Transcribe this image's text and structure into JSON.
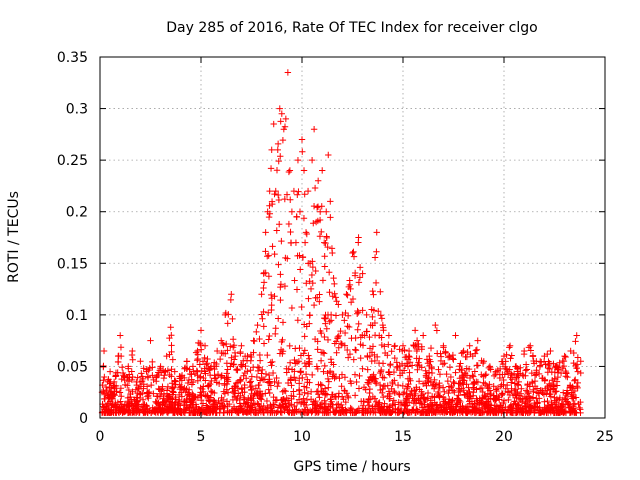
{
  "chart_data": {
    "type": "scatter",
    "title": "Day 285 of 2016, Rate Of TEC Index for receiver clgo",
    "xlabel": "GPS time / hours",
    "ylabel": "ROTI / TECUs",
    "xlim": [
      0,
      25
    ],
    "ylim": [
      0,
      0.35
    ],
    "x_ticks": [
      0,
      5,
      10,
      15,
      20,
      25
    ],
    "x_tick_labels": [
      "0",
      "5",
      "10",
      "15",
      "20",
      "25"
    ],
    "y_ticks": [
      0,
      0.05,
      0.1,
      0.15,
      0.2,
      0.25,
      0.3,
      0.35
    ],
    "y_tick_labels": [
      "0",
      "0.05",
      "0.1",
      "0.15",
      "0.2",
      "0.25",
      "0.3",
      "0.35"
    ],
    "grid": true,
    "marker": "+",
    "marker_color": "#ff0000",
    "envelope_description": "Dense red '+' markers; baseline ROTI 0.005-0.05 across 0-24 h with spikes to ~0.08-0.09; enhanced activity 8-12 h peaking near 0.3 and a max of ~0.335 at 9.3 h; secondary spikes to ~0.18 near 13.5 h.",
    "series": [
      {
        "name": "ROTI",
        "x": [
          0.1,
          0.2,
          0.3,
          0.5,
          0.7,
          0.9,
          1.0,
          1.2,
          1.4,
          1.6,
          1.8,
          2.0,
          2.3,
          2.5,
          2.8,
          3.0,
          3.3,
          3.5,
          3.7,
          4.0,
          4.3,
          4.6,
          5.0,
          5.2,
          5.5,
          5.8,
          6.0,
          6.2,
          6.5,
          6.7,
          7.0,
          7.3,
          7.6,
          7.8,
          8.0,
          8.1,
          8.2,
          8.3,
          8.4,
          8.5,
          8.6,
          8.7,
          8.8,
          8.9,
          9.0,
          9.1,
          9.2,
          9.3,
          9.4,
          9.5,
          9.6,
          9.7,
          9.8,
          9.9,
          10.0,
          10.1,
          10.2,
          10.3,
          10.4,
          10.5,
          10.6,
          10.7,
          10.8,
          10.9,
          11.0,
          11.1,
          11.2,
          11.3,
          11.4,
          11.5,
          11.6,
          11.8,
          12.0,
          12.2,
          12.5,
          12.8,
          13.0,
          13.2,
          13.4,
          13.5,
          13.7,
          14.0,
          14.3,
          14.6,
          15.0,
          15.3,
          15.6,
          16.0,
          16.3,
          16.6,
          17.0,
          17.3,
          17.6,
          18.0,
          18.3,
          18.7,
          19.0,
          19.3,
          19.6,
          20.0,
          20.3,
          20.6,
          21.0,
          21.3,
          21.6,
          22.0,
          22.3,
          22.6,
          23.0,
          23.3,
          23.6,
          23.8
        ],
        "y": [
          0.025,
          0.065,
          0.03,
          0.045,
          0.035,
          0.06,
          0.08,
          0.04,
          0.05,
          0.065,
          0.035,
          0.055,
          0.045,
          0.075,
          0.04,
          0.05,
          0.06,
          0.088,
          0.045,
          0.04,
          0.055,
          0.05,
          0.085,
          0.07,
          0.05,
          0.065,
          0.075,
          0.1,
          0.12,
          0.06,
          0.07,
          0.06,
          0.075,
          0.09,
          0.12,
          0.14,
          0.18,
          0.2,
          0.22,
          0.26,
          0.285,
          0.22,
          0.26,
          0.3,
          0.295,
          0.28,
          0.29,
          0.335,
          0.24,
          0.2,
          0.22,
          0.17,
          0.25,
          0.2,
          0.27,
          0.24,
          0.18,
          0.22,
          0.15,
          0.25,
          0.28,
          0.19,
          0.23,
          0.2,
          0.24,
          0.17,
          0.2,
          0.255,
          0.21,
          0.16,
          0.13,
          0.11,
          0.1,
          0.12,
          0.16,
          0.175,
          0.14,
          0.1,
          0.09,
          0.123,
          0.18,
          0.09,
          0.08,
          0.07,
          0.07,
          0.065,
          0.085,
          0.08,
          0.06,
          0.09,
          0.07,
          0.06,
          0.08,
          0.065,
          0.07,
          0.075,
          0.055,
          0.05,
          0.045,
          0.06,
          0.07,
          0.05,
          0.065,
          0.07,
          0.055,
          0.06,
          0.065,
          0.05,
          0.06,
          0.065,
          0.08,
          0.055
        ]
      }
    ]
  }
}
